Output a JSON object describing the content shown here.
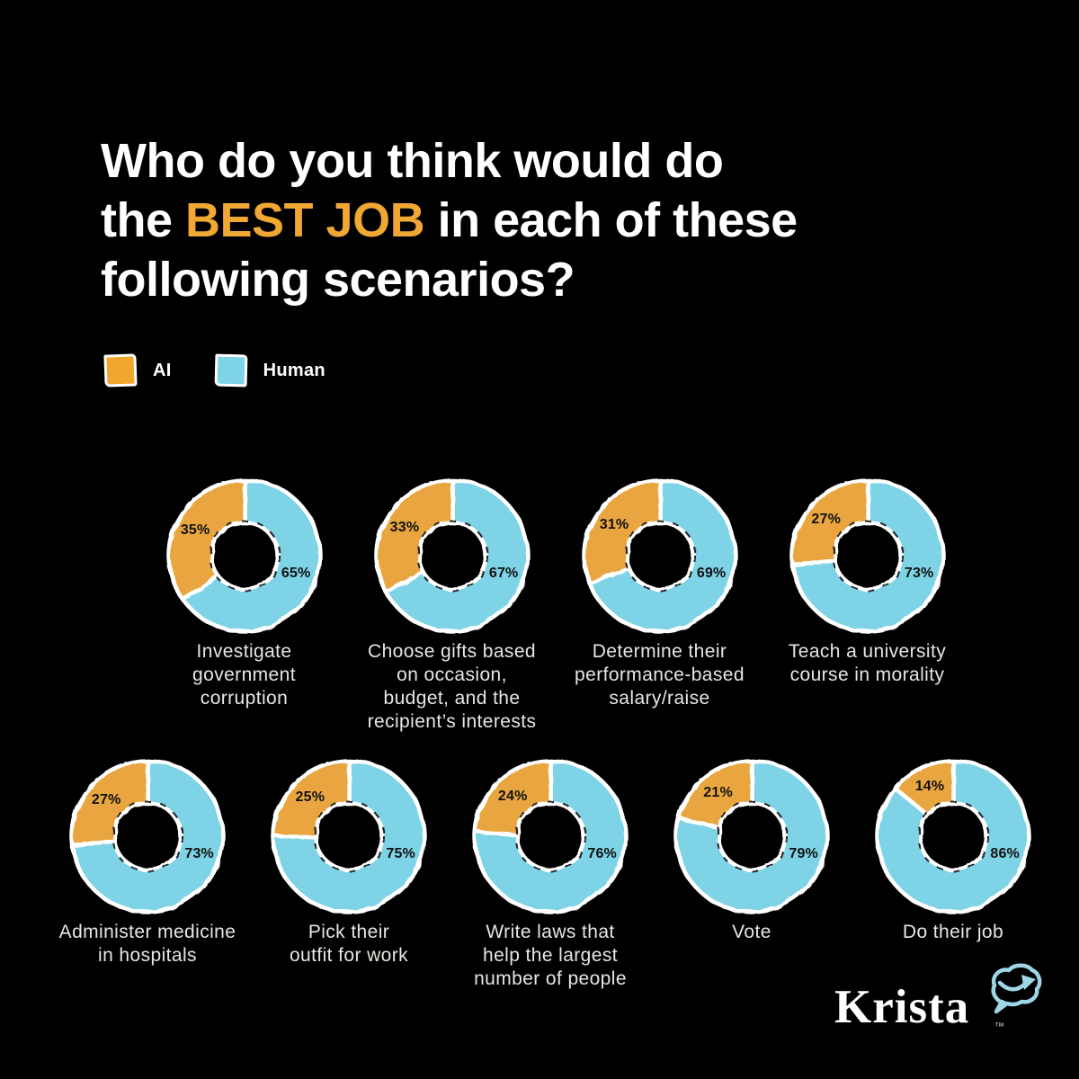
{
  "title": {
    "line1": "Who do you think would do",
    "line2_pre": "the ",
    "line2_highlight": "BEST JOB",
    "line2_post": " in each of these",
    "line3": "following scenarios?",
    "highlight_color": "#f1a733"
  },
  "legend": {
    "items": [
      {
        "id": "ai",
        "label": "AI",
        "color": "#f0a62f"
      },
      {
        "id": "human",
        "label": "Human",
        "color": "#7ed3e6"
      }
    ]
  },
  "chart_data": {
    "type": "pie",
    "variant": "donut",
    "title": "Who do you think would do the BEST JOB in each of these following scenarios?",
    "series_names": [
      "AI",
      "Human"
    ],
    "colors": {
      "AI": "#e9a640",
      "Human": "#7ed3e6"
    },
    "pct_label_color": "#111111",
    "background": "#000000",
    "legend_position": "top-left",
    "rows": [
      [
        0,
        1,
        2,
        3
      ],
      [
        4,
        5,
        6,
        7,
        8
      ]
    ],
    "charts": [
      {
        "label": "Investigate government corruption",
        "label_lines": [
          "Investigate",
          "government",
          "corruption"
        ],
        "values": {
          "AI": 35,
          "Human": 65
        }
      },
      {
        "label": "Choose gifts based on occasion, budget, and the recipient’s interests",
        "label_lines": [
          "Choose gifts based",
          "on occasion,",
          "budget, and the",
          "recipient’s interests"
        ],
        "values": {
          "AI": 33,
          "Human": 67
        }
      },
      {
        "label": "Determine their performance-based salary/raise",
        "label_lines": [
          "Determine their",
          "performance-based",
          "salary/raise"
        ],
        "values": {
          "AI": 31,
          "Human": 69
        }
      },
      {
        "label": "Teach a university course in morality",
        "label_lines": [
          "Teach a university",
          "course in morality"
        ],
        "values": {
          "AI": 27,
          "Human": 73
        }
      },
      {
        "label": "Administer medicine in hospitals",
        "label_lines": [
          "Administer medicine",
          "in hospitals"
        ],
        "values": {
          "AI": 27,
          "Human": 73
        }
      },
      {
        "label": "Pick their outfit for work",
        "label_lines": [
          "Pick their",
          "outfit for work"
        ],
        "values": {
          "AI": 25,
          "Human": 75
        }
      },
      {
        "label": "Write laws that help the largest number of people",
        "label_lines": [
          "Write laws that",
          "help the largest",
          "number of people"
        ],
        "values": {
          "AI": 24,
          "Human": 76
        }
      },
      {
        "label": "Vote",
        "label_lines": [
          "Vote"
        ],
        "values": {
          "AI": 21,
          "Human": 79
        }
      },
      {
        "label": "Do their job",
        "label_lines": [
          "Do their job"
        ],
        "values": {
          "AI": 14,
          "Human": 86
        }
      }
    ]
  },
  "logo": {
    "text": "Krista",
    "tm": "™",
    "icon": "brain-speech-bubble-icon",
    "icon_color": "#9fd6e6"
  }
}
